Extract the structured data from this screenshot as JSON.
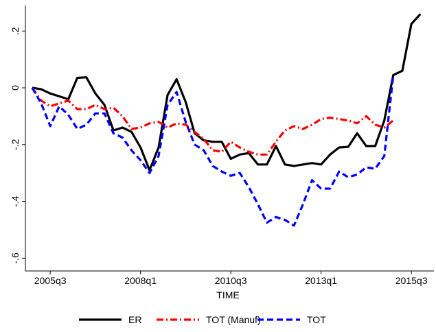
{
  "chart_data": {
    "type": "line",
    "x_label": "TIME",
    "x": [
      180,
      181,
      182,
      183,
      184,
      185,
      186,
      187,
      188,
      189,
      190,
      191,
      192,
      193,
      194,
      195,
      196,
      197,
      198,
      199,
      200,
      201,
      202,
      203,
      204,
      205,
      206,
      207,
      208,
      209,
      210,
      211,
      212,
      213,
      214,
      215,
      216,
      217,
      218,
      219,
      220,
      221,
      222,
      223
    ],
    "series": [
      {
        "name": "ER",
        "color": "#000000",
        "dash": "solid",
        "values": [
          0,
          -0.005,
          -0.02,
          -0.03,
          -0.04,
          0.035,
          0.037,
          -0.02,
          -0.06,
          -0.15,
          -0.14,
          -0.155,
          -0.21,
          -0.29,
          -0.21,
          -0.025,
          0.03,
          -0.05,
          -0.16,
          -0.185,
          -0.19,
          -0.19,
          -0.25,
          -0.235,
          -0.23,
          -0.27,
          -0.27,
          -0.205,
          -0.27,
          -0.275,
          -0.27,
          -0.265,
          -0.27,
          -0.235,
          -0.21,
          -0.208,
          -0.16,
          -0.205,
          -0.205,
          -0.115,
          0.045,
          0.06,
          0.225,
          0.26
        ]
      },
      {
        "name": "TOT (Manuf)",
        "color": "#ff0000",
        "dash": "dashdot",
        "values": [
          0,
          -0.045,
          -0.065,
          -0.055,
          -0.045,
          -0.075,
          -0.075,
          -0.06,
          -0.075,
          -0.07,
          -0.1,
          -0.145,
          -0.14,
          -0.125,
          -0.12,
          -0.14,
          -0.125,
          -0.13,
          -0.155,
          -0.18,
          -0.22,
          -0.225,
          -0.19,
          -0.21,
          -0.225,
          -0.235,
          -0.235,
          -0.19,
          -0.15,
          -0.135,
          -0.145,
          -0.13,
          -0.11,
          -0.105,
          -0.11,
          -0.115,
          -0.125,
          -0.1,
          -0.13,
          -0.14,
          -0.115,
          null,
          null,
          null
        ]
      },
      {
        "name": "TOT",
        "color": "#0000ff",
        "dash": "dash",
        "values": [
          0,
          -0.055,
          -0.135,
          -0.065,
          -0.095,
          -0.145,
          -0.13,
          -0.09,
          -0.09,
          -0.16,
          -0.175,
          -0.22,
          -0.255,
          -0.3,
          -0.24,
          -0.06,
          -0.015,
          -0.12,
          -0.2,
          -0.22,
          -0.275,
          -0.295,
          -0.31,
          -0.3,
          -0.35,
          -0.41,
          -0.475,
          -0.455,
          -0.465,
          -0.485,
          -0.41,
          -0.325,
          -0.355,
          -0.355,
          -0.295,
          -0.315,
          -0.305,
          -0.28,
          -0.285,
          -0.24,
          0.045,
          null,
          null,
          null
        ]
      }
    ],
    "xlim": [
      179.25,
      224.5
    ],
    "xticks": [
      {
        "value": 182,
        "label": "2005q3"
      },
      {
        "value": 192,
        "label": "2008q1"
      },
      {
        "value": 202,
        "label": "2010q3"
      },
      {
        "value": 212,
        "label": "2013q1"
      },
      {
        "value": 222,
        "label": "2015q3"
      }
    ],
    "ylim": [
      -0.645,
      0.29
    ],
    "yticks": [
      {
        "value": -0.6,
        "label": "-.6"
      },
      {
        "value": -0.4,
        "label": "-.4"
      },
      {
        "value": -0.2,
        "label": "-.2"
      },
      0,
      {
        "value": 0.2,
        "label": ".2"
      }
    ],
    "grid": false,
    "legend": "bottom"
  }
}
